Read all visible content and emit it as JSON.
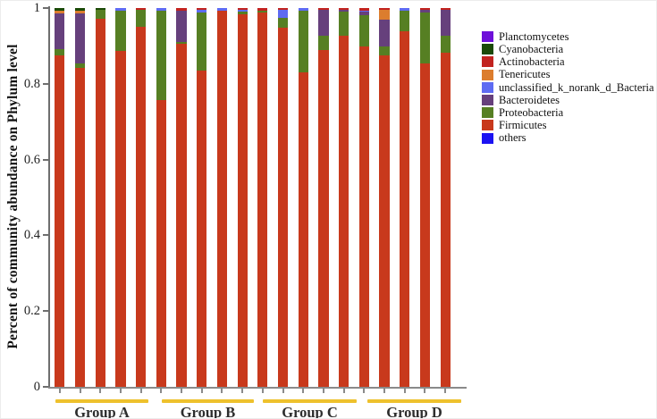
{
  "chart_data": {
    "type": "stacked_bar",
    "title": "",
    "ylabel": "Percent of community abundance on Phylum level",
    "xlabel": "",
    "ylim": [
      0,
      1
    ],
    "grid": false,
    "legend_position": "right-top",
    "yticks": [
      {
        "label": "1",
        "value": 1
      },
      {
        "label": "0.8",
        "value": 0.8
      },
      {
        "label": "0.6",
        "value": 0.6
      },
      {
        "label": "0.4",
        "value": 0.4
      },
      {
        "label": "0.2",
        "value": 0.2
      },
      {
        "label": "0",
        "value": 0
      }
    ],
    "legend": [
      {
        "label": "Planctomycetes",
        "color": "#6E10D9"
      },
      {
        "label": "Cyanobacteria",
        "color": "#1B4A07"
      },
      {
        "label": "Actinobacteria",
        "color": "#C2231F"
      },
      {
        "label": "Tenericutes",
        "color": "#DC7D2E"
      },
      {
        "label": "unclassified_k_norank_d_Bacteria",
        "color": "#5E6BF2"
      },
      {
        "label": "Bacteroidetes",
        "color": "#66407C"
      },
      {
        "label": "Proteobacteria",
        "color": "#567F23"
      },
      {
        "label": "Firmicutes",
        "color": "#C8391C"
      },
      {
        "label": "others",
        "color": "#1C13F2"
      }
    ],
    "stack_order_top_to_bottom": [
      "Planctomycetes",
      "Cyanobacteria",
      "Actinobacteria",
      "Tenericutes",
      "unclassified_k_norank_d_Bacteria",
      "Bacteroidetes",
      "Proteobacteria",
      "Firmicutes",
      "others"
    ],
    "group_underline_color": "#EEC12C",
    "groups": [
      {
        "label": "Group A",
        "bars": [
          {
            "Cyanobacteria": 0.008,
            "Tenericutes": 0.006,
            "Bacteroidetes": 0.095,
            "Proteobacteria": 0.015,
            "Firmicutes": 0.876
          },
          {
            "Cyanobacteria": 0.008,
            "Tenericutes": 0.005,
            "Bacteroidetes": 0.133,
            "Proteobacteria": 0.012,
            "Firmicutes": 0.842
          },
          {
            "Cyanobacteria": 0.004,
            "Proteobacteria": 0.024,
            "Firmicutes": 0.972
          },
          {
            "unclassified_k_norank_d_Bacteria": 0.006,
            "Proteobacteria": 0.107,
            "Firmicutes": 0.887
          },
          {
            "Actinobacteria": 0.005,
            "Proteobacteria": 0.045,
            "Firmicutes": 0.95
          }
        ]
      },
      {
        "label": "Group B",
        "bars": [
          {
            "unclassified_k_norank_d_Bacteria": 0.006,
            "Proteobacteria": 0.238,
            "Firmicutes": 0.756
          },
          {
            "Actinobacteria": 0.006,
            "Bacteroidetes": 0.083,
            "Proteobacteria": 0.006,
            "Firmicutes": 0.905
          },
          {
            "Actinobacteria": 0.004,
            "unclassified_k_norank_d_Bacteria": 0.007,
            "Proteobacteria": 0.154,
            "Firmicutes": 0.835
          },
          {
            "unclassified_k_norank_d_Bacteria": 0.007,
            "Firmicutes": 0.993
          },
          {
            "Actinobacteria": 0.005,
            "unclassified_k_norank_d_Bacteria": 0.005,
            "Proteobacteria": 0.006,
            "Firmicutes": 0.984
          }
        ]
      },
      {
        "label": "Group C",
        "bars": [
          {
            "Actinobacteria": 0.006,
            "Proteobacteria": 0.007,
            "Firmicutes": 0.987
          },
          {
            "Actinobacteria": 0.005,
            "unclassified_k_norank_d_Bacteria": 0.021,
            "Proteobacteria": 0.026,
            "Firmicutes": 0.948
          },
          {
            "unclassified_k_norank_d_Bacteria": 0.007,
            "Proteobacteria": 0.164,
            "Firmicutes": 0.829
          },
          {
            "Actinobacteria": 0.005,
            "Bacteroidetes": 0.067,
            "Proteobacteria": 0.039,
            "Firmicutes": 0.889
          },
          {
            "Actinobacteria": 0.005,
            "Bacteroidetes": 0.005,
            "Proteobacteria": 0.064,
            "Firmicutes": 0.926
          }
        ]
      },
      {
        "label": "Group D",
        "bars": [
          {
            "Actinobacteria": 0.006,
            "unclassified_k_norank_d_Bacteria": 0.004,
            "Bacteroidetes": 0.01,
            "Proteobacteria": 0.081,
            "Firmicutes": 0.899
          },
          {
            "Actinobacteria": 0.005,
            "Tenericutes": 0.026,
            "Bacteroidetes": 0.071,
            "Proteobacteria": 0.022,
            "Firmicutes": 0.876
          },
          {
            "unclassified_k_norank_d_Bacteria": 0.007,
            "Proteobacteria": 0.055,
            "Firmicutes": 0.938
          },
          {
            "Actinobacteria": 0.005,
            "Bacteroidetes": 0.006,
            "Proteobacteria": 0.135,
            "Firmicutes": 0.854
          },
          {
            "Actinobacteria": 0.004,
            "Bacteroidetes": 0.068,
            "Proteobacteria": 0.046,
            "Firmicutes": 0.882
          }
        ]
      }
    ]
  }
}
